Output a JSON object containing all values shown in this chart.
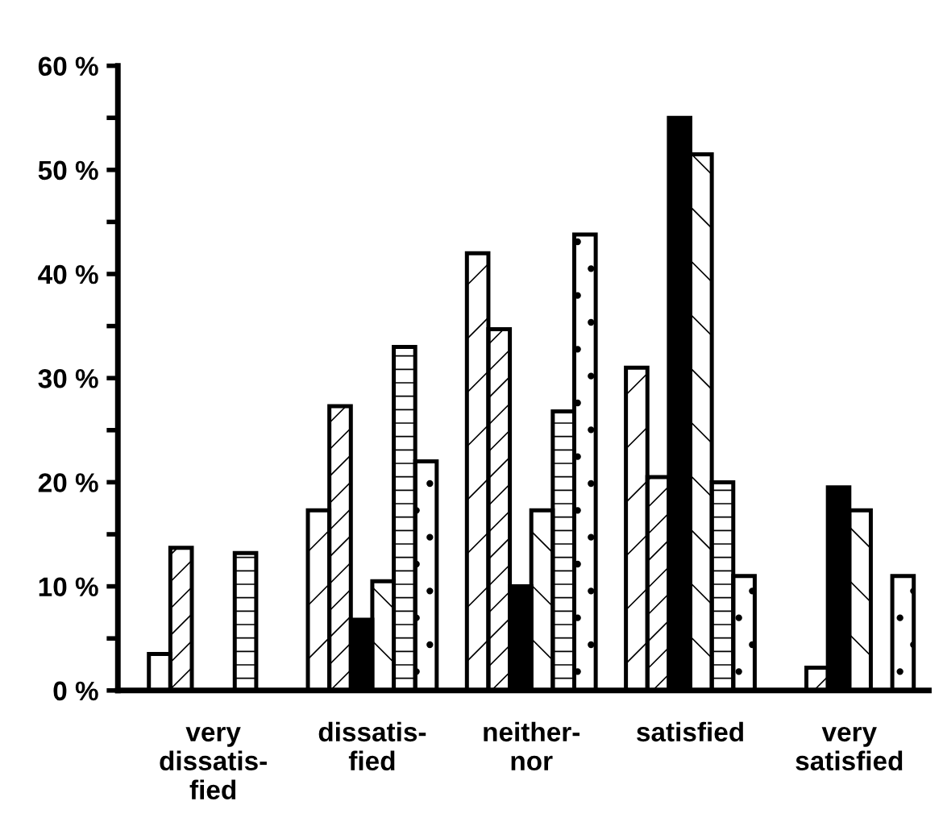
{
  "chart_data": {
    "type": "bar",
    "categories": [
      "very\ndissatis-\nfied",
      "dissatis-\nfied",
      "neither-\nnor",
      "satisfied",
      "very\nsatisfied"
    ],
    "series": [
      {
        "color": "#ffffff",
        "values": [
          3.5,
          17.3,
          42,
          31,
          null
        ]
      },
      {
        "color": "#ffffff",
        "values": [
          13.7,
          27.3,
          34.7,
          20.5,
          2.2
        ]
      },
      {
        "color": "#000000",
        "values": [
          null,
          6.8,
          10,
          55,
          19.5
        ]
      },
      {
        "color": "#ffffff",
        "values": [
          null,
          10.5,
          17.3,
          51.5,
          17.3
        ]
      },
      {
        "color": "#ffffff",
        "values": [
          13.2,
          33,
          26.8,
          20,
          null
        ]
      },
      {
        "color": "#ffffff",
        "values": [
          null,
          22,
          43.8,
          11,
          11
        ]
      }
    ],
    "ylim": [
      0,
      60
    ],
    "yticks": [
      {
        "value": 0,
        "label": "0 %"
      },
      {
        "value": 5,
        "label": null
      },
      {
        "value": 10,
        "label": "10 %"
      },
      {
        "value": 15,
        "label": null
      },
      {
        "value": 20,
        "label": "20 %"
      },
      {
        "value": 25,
        "label": null
      },
      {
        "value": 30,
        "label": "30 %"
      },
      {
        "value": 35,
        "label": null
      },
      {
        "value": 40,
        "label": "40 %"
      },
      {
        "value": 45,
        "label": null
      },
      {
        "value": 50,
        "label": "50 %"
      },
      {
        "value": 55,
        "label": null
      },
      {
        "value": 60,
        "label": "60 %"
      }
    ],
    "grid": false,
    "legend": false
  }
}
